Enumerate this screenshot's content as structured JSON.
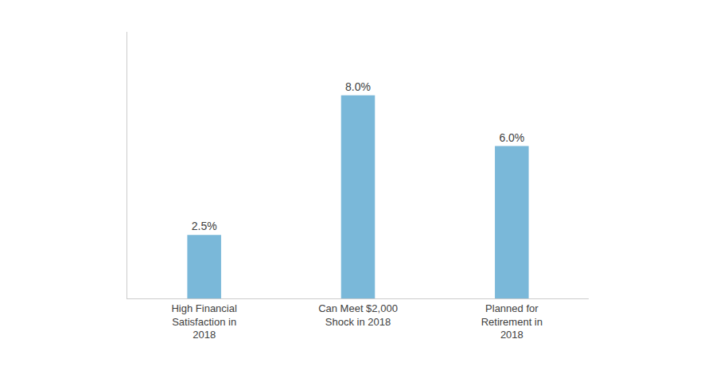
{
  "chart_data": {
    "type": "bar",
    "categories": [
      "High Financial\nSatisfaction in\n2018",
      "Can Meet $2,000\nShock in 2018",
      "Planned for\nRetirement in\n2018"
    ],
    "values": [
      2.5,
      8.0,
      6.0
    ],
    "value_labels": [
      "2.5%",
      "8.0%",
      "6.0%"
    ],
    "data_labels": true,
    "color": "#7ab8d9",
    "ylim": [
      0,
      10.5
    ],
    "grid": false,
    "tick_labels": "x"
  }
}
